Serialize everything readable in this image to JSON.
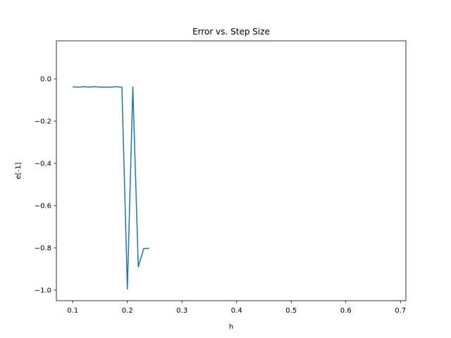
{
  "chart_data": {
    "type": "line",
    "title": "Error vs. Step Size",
    "xlabel": "h",
    "ylabel": "e[-1]",
    "xlim": [
      0.07,
      0.71
    ],
    "ylim": [
      -1.05,
      0.18
    ],
    "xticks": [
      0.1,
      0.2,
      0.3,
      0.4,
      0.5,
      0.6,
      0.7
    ],
    "xtick_labels": [
      "0.1",
      "0.2",
      "0.3",
      "0.4",
      "0.5",
      "0.6",
      "0.7"
    ],
    "yticks": [
      0.0,
      -0.2,
      -0.4,
      -0.6,
      -0.8,
      -1.0
    ],
    "ytick_labels": [
      "0.0",
      "−0.2",
      "−0.4",
      "−0.6",
      "−0.8",
      "−1.0"
    ],
    "grid": false,
    "series": [
      {
        "color": "#1f77b4",
        "x": [
          0.1,
          0.11,
          0.12,
          0.13,
          0.14,
          0.15,
          0.16,
          0.17,
          0.18,
          0.19,
          0.2,
          0.21,
          0.22,
          0.23,
          0.24
        ],
        "y": [
          -0.038,
          -0.039,
          -0.037,
          -0.039,
          -0.037,
          -0.039,
          -0.039,
          -0.039,
          -0.037,
          -0.04,
          -0.995,
          -0.038,
          -0.89,
          -0.803,
          -0.802
        ]
      }
    ]
  }
}
